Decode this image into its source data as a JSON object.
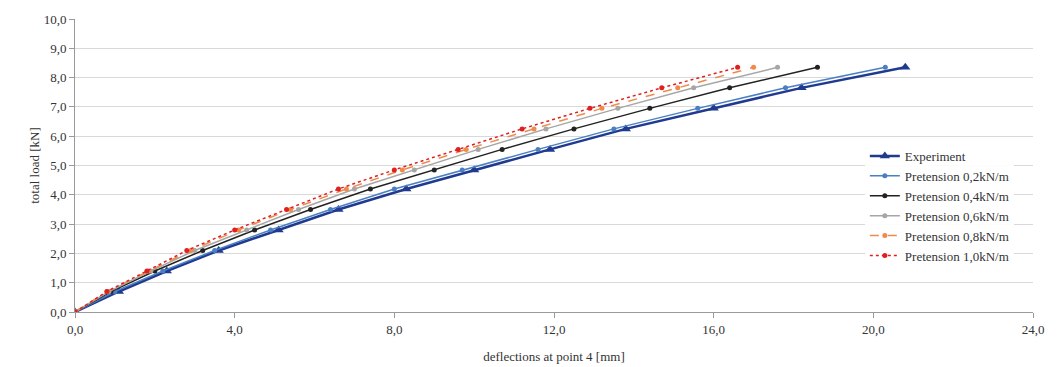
{
  "chart_data": {
    "type": "line",
    "x_label": "deflections at point 4 [mm]",
    "y_label": "total load [kN]",
    "xlim": [
      0,
      24
    ],
    "ylim": [
      0,
      10
    ],
    "xticks": [
      {
        "value": 0,
        "label": "0,0"
      },
      {
        "value": 4,
        "label": "4,0"
      },
      {
        "value": 8,
        "label": "8,0"
      },
      {
        "value": 12,
        "label": "12,0"
      },
      {
        "value": 16,
        "label": "16,0"
      },
      {
        "value": 20,
        "label": "20,0"
      },
      {
        "value": 24,
        "label": "24,0"
      }
    ],
    "yticks": [
      {
        "value": 0,
        "label": "0,0"
      },
      {
        "value": 1,
        "label": "1,0"
      },
      {
        "value": 2,
        "label": "2,0"
      },
      {
        "value": 3,
        "label": "3,0"
      },
      {
        "value": 4,
        "label": "4,0"
      },
      {
        "value": 5,
        "label": "5,0"
      },
      {
        "value": 6,
        "label": "6,0"
      },
      {
        "value": 7,
        "label": "7,0"
      },
      {
        "value": 8,
        "label": "8,0"
      },
      {
        "value": 9,
        "label": "9,0"
      },
      {
        "value": 10,
        "label": "10,0"
      }
    ],
    "grid": "y",
    "legend": "lower right",
    "series": [
      {
        "name": "Experiment",
        "color": "#1f3a8f",
        "marker": "triangle",
        "line_style": "solid",
        "x": [
          0,
          1.1,
          2.3,
          3.6,
          5.1,
          6.6,
          8.3,
          10.0,
          11.9,
          13.8,
          16.0,
          18.2,
          20.8
        ],
        "values": [
          0,
          0.7,
          1.4,
          2.1,
          2.8,
          3.5,
          4.2,
          4.85,
          5.55,
          6.25,
          6.95,
          7.65,
          8.35
        ]
      },
      {
        "name": "Pretension 0,2kN/m",
        "color": "#4a7fc1",
        "marker": "circle",
        "line_style": "solid",
        "x": [
          0,
          1.0,
          2.2,
          3.5,
          4.9,
          6.4,
          8.0,
          9.7,
          11.6,
          13.5,
          15.6,
          17.8,
          20.3
        ],
        "values": [
          0,
          0.7,
          1.4,
          2.1,
          2.8,
          3.5,
          4.2,
          4.85,
          5.55,
          6.25,
          6.95,
          7.65,
          8.35
        ]
      },
      {
        "name": "Pretension 0,4kN/m",
        "color": "#222222",
        "marker": "circle",
        "line_style": "solid",
        "x": [
          0,
          0.9,
          2.0,
          3.2,
          4.5,
          5.9,
          7.4,
          9.0,
          10.7,
          12.5,
          14.4,
          16.4,
          18.6
        ],
        "values": [
          0,
          0.7,
          1.4,
          2.1,
          2.8,
          3.5,
          4.2,
          4.85,
          5.55,
          6.25,
          6.95,
          7.65,
          8.35
        ]
      },
      {
        "name": "Pretension 0,6kN/m",
        "color": "#a6a6a6",
        "marker": "circle",
        "line_style": "solid",
        "x": [
          0,
          0.85,
          1.9,
          3.0,
          4.3,
          5.6,
          7.0,
          8.5,
          10.1,
          11.8,
          13.6,
          15.5,
          17.6
        ],
        "values": [
          0,
          0.7,
          1.4,
          2.1,
          2.8,
          3.5,
          4.2,
          4.85,
          5.55,
          6.25,
          6.95,
          7.65,
          8.35
        ]
      },
      {
        "name": "Pretension 0,8kN/m",
        "color": "#f08a4b",
        "marker": "circle",
        "line_style": "dashed",
        "x": [
          0,
          0.8,
          1.85,
          2.9,
          4.1,
          5.4,
          6.8,
          8.2,
          9.8,
          11.5,
          13.2,
          15.1,
          17.0
        ],
        "values": [
          0,
          0.7,
          1.4,
          2.1,
          2.8,
          3.5,
          4.2,
          4.85,
          5.55,
          6.25,
          6.95,
          7.65,
          8.35
        ]
      },
      {
        "name": "Pretension 1,0kN/m",
        "color": "#e02020",
        "marker": "circle",
        "line_style": "dotted",
        "x": [
          0,
          0.8,
          1.8,
          2.8,
          4.0,
          5.3,
          6.6,
          8.0,
          9.6,
          11.2,
          12.9,
          14.7,
          16.6
        ],
        "values": [
          0,
          0.7,
          1.4,
          2.1,
          2.8,
          3.5,
          4.2,
          4.85,
          5.55,
          6.25,
          6.95,
          7.65,
          8.35
        ]
      }
    ]
  }
}
